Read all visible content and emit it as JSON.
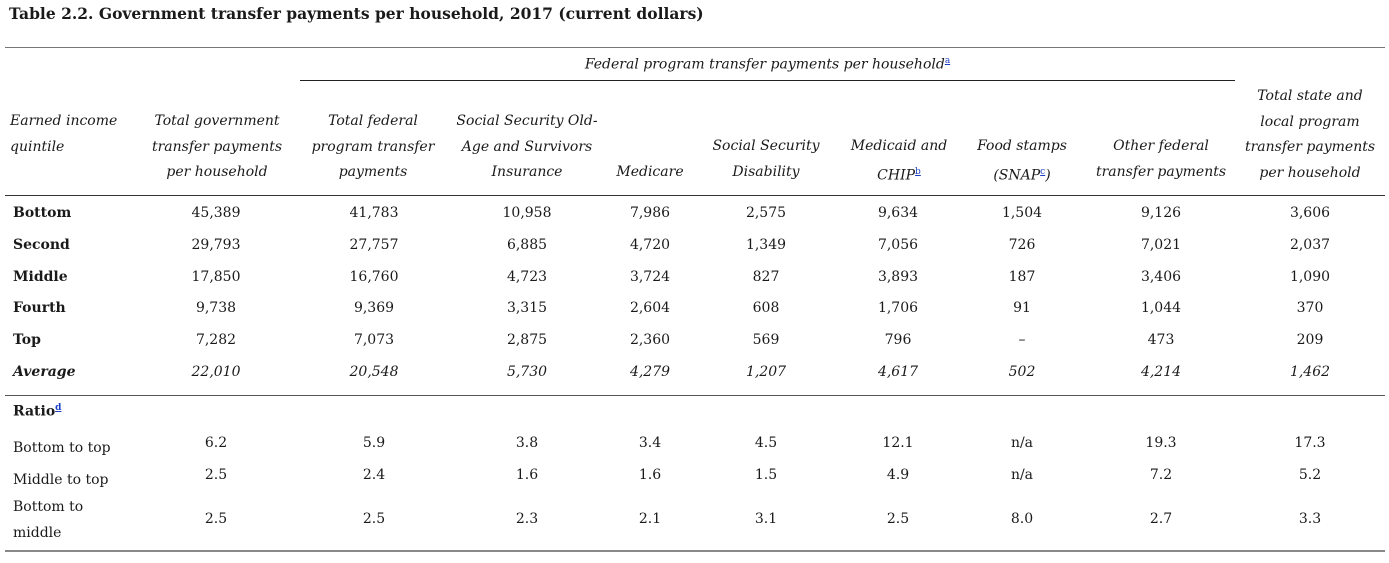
{
  "title": "Table 2.2. Government transfer payments per household, 2017 (current dollars)",
  "federal_group_header": "Federal program transfer payments per household",
  "federal_group_note": "a",
  "columns": [
    {
      "label": "Earned income quintile"
    },
    {
      "label": "Total government transfer payments per household"
    },
    {
      "label": "Total federal program transfer payments"
    },
    {
      "label": "Social Security Old-Age and Survivors Insurance"
    },
    {
      "label": "Medicare"
    },
    {
      "label": "Social Security Disability"
    },
    {
      "label": "Medicaid and CHIP",
      "note": "b"
    },
    {
      "label": "Food stamps (SNAP",
      "note": "c",
      "suffix": ")"
    },
    {
      "label": "Other federal transfer payments"
    },
    {
      "label": "Total state and local program transfer payments per household"
    }
  ],
  "rows": [
    {
      "label": "Bottom",
      "values": [
        "45,389",
        "41,783",
        "10,958",
        "7,986",
        "2,575",
        "9,634",
        "1,504",
        "9,126",
        "3,606"
      ]
    },
    {
      "label": "Second",
      "values": [
        "29,793",
        "27,757",
        "6,885",
        "4,720",
        "1,349",
        "7,056",
        "726",
        "7,021",
        "2,037"
      ]
    },
    {
      "label": "Middle",
      "values": [
        "17,850",
        "16,760",
        "4,723",
        "3,724",
        "827",
        "3,893",
        "187",
        "3,406",
        "1,090"
      ]
    },
    {
      "label": "Fourth",
      "values": [
        "9,738",
        "9,369",
        "3,315",
        "2,604",
        "608",
        "1,706",
        "91",
        "1,044",
        "370"
      ]
    },
    {
      "label": "Top",
      "values": [
        "7,282",
        "7,073",
        "2,875",
        "2,360",
        "569",
        "796",
        "–",
        "473",
        "209"
      ]
    },
    {
      "label": "Average",
      "values": [
        "22,010",
        "20,548",
        "5,730",
        "4,279",
        "1,207",
        "4,617",
        "502",
        "4,214",
        "1,462"
      ]
    }
  ],
  "ratio_header": "Ratio",
  "ratio_note": "d",
  "ratio_rows": [
    {
      "label": "Bottom to top",
      "values": [
        "6.2",
        "5.9",
        "3.8",
        "3.4",
        "4.5",
        "12.1",
        "n/a",
        "19.3",
        "17.3"
      ]
    },
    {
      "label": "Middle to top",
      "values": [
        "2.5",
        "2.4",
        "1.6",
        "1.6",
        "1.5",
        "4.9",
        "n/a",
        "7.2",
        "5.2"
      ]
    },
    {
      "label": "Bottom to middle",
      "values": [
        "2.5",
        "2.5",
        "2.3",
        "2.1",
        "3.1",
        "2.5",
        "8.0",
        "2.7",
        "3.3"
      ]
    }
  ]
}
